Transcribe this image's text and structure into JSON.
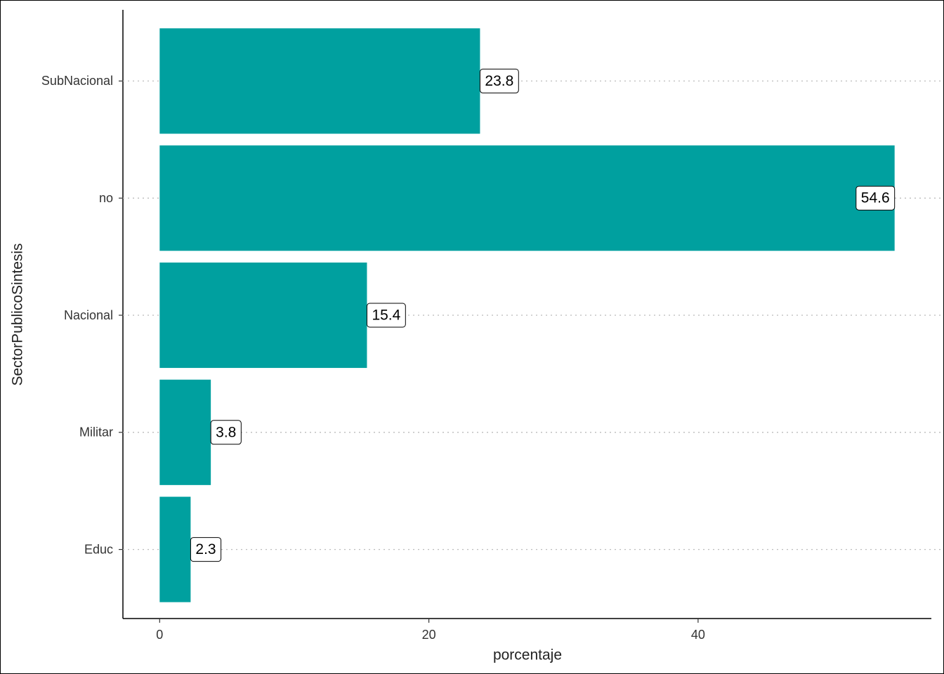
{
  "chart_data": {
    "type": "barh",
    "xlabel": "porcentaje",
    "ylabel": "SectorPublicoSintesis",
    "categories": [
      "SubNacional",
      "no",
      "Nacional",
      "Militar",
      "Educ"
    ],
    "values": [
      23.8,
      54.6,
      15.4,
      3.8,
      2.3
    ],
    "color": "#00a09f",
    "xlim": [
      -2.73,
      57.33
    ],
    "xticks": [
      0,
      20,
      40
    ],
    "grid": "dotted-horizontal"
  }
}
